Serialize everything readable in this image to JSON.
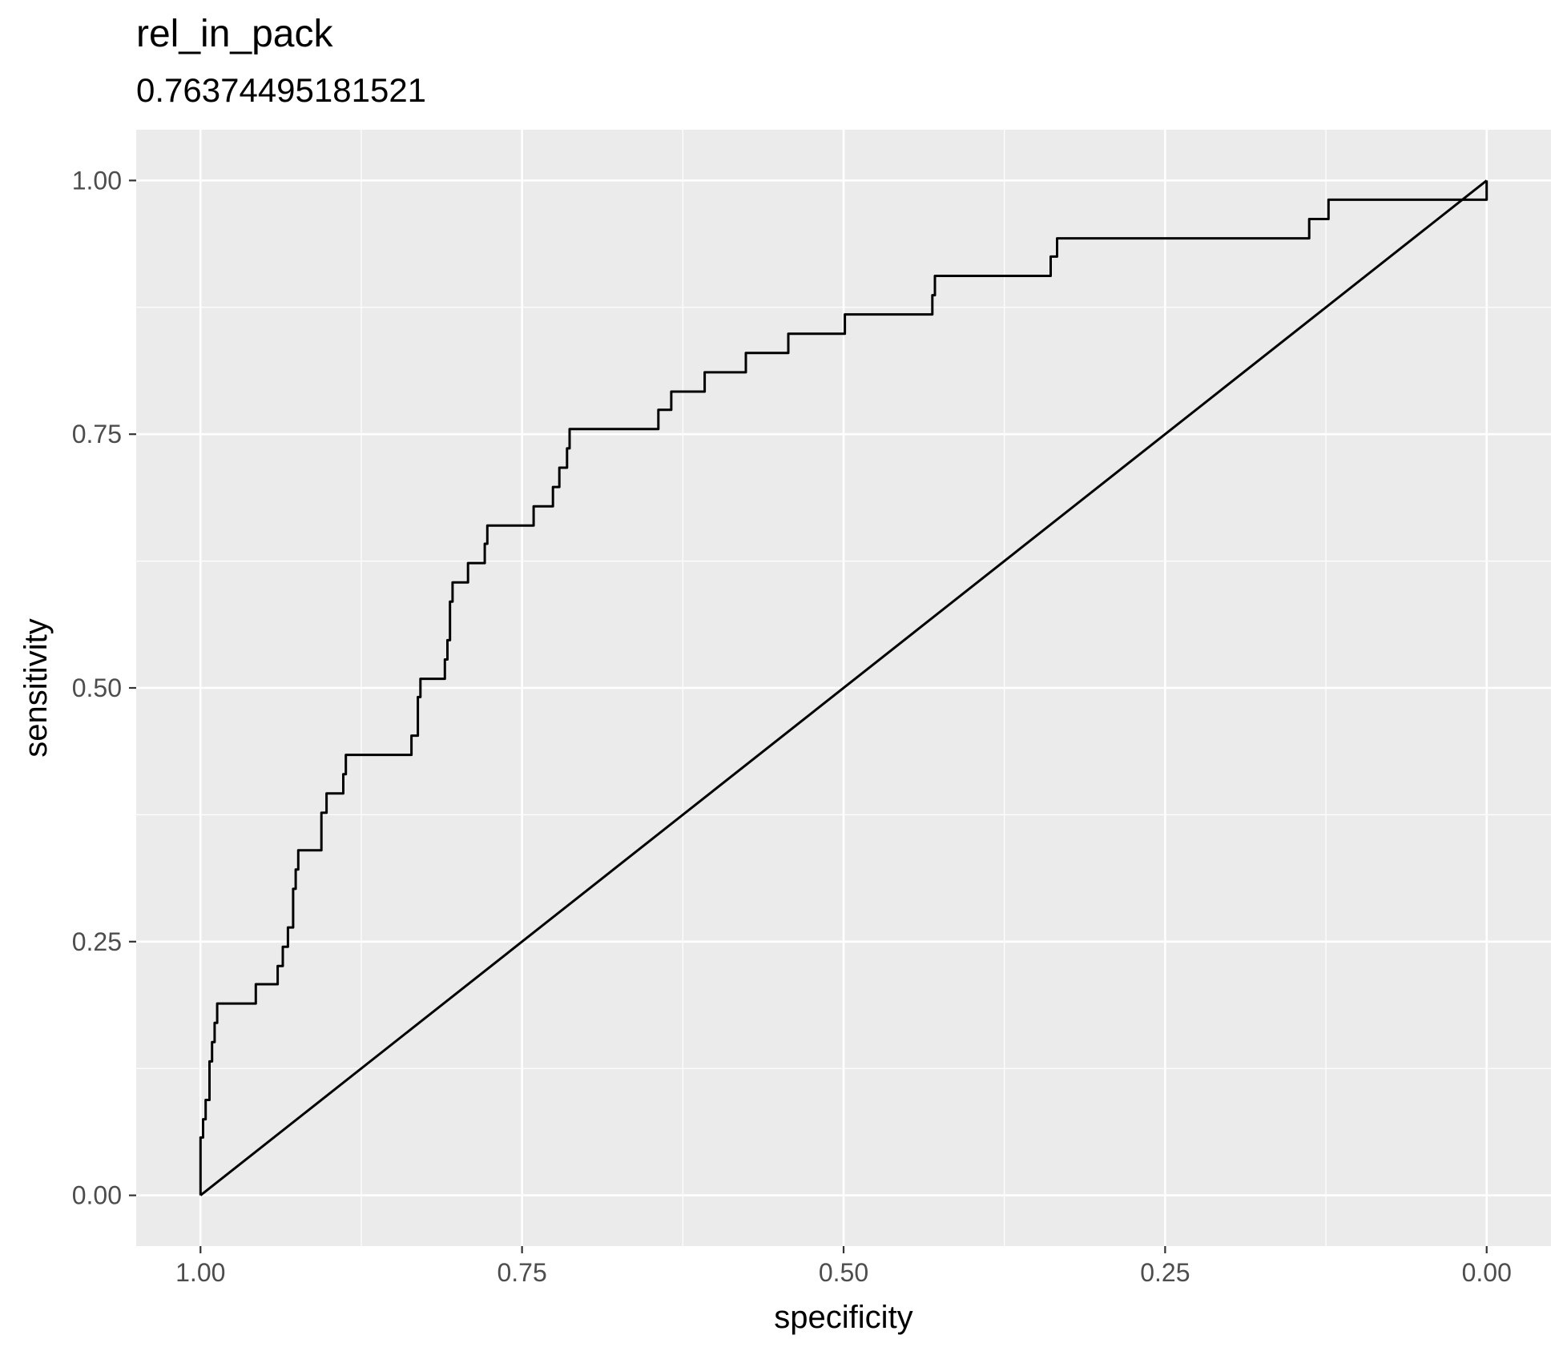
{
  "chart_data": {
    "type": "line",
    "title": "rel_in_pack",
    "subtitle": "0.76374495181521",
    "xlabel": "specificity",
    "ylabel": "sensitivity",
    "xlim": [
      1.05,
      -0.05
    ],
    "ylim": [
      -0.05,
      1.05
    ],
    "x_reversed": true,
    "xticks": [
      1.0,
      0.75,
      0.5,
      0.25,
      0.0
    ],
    "xtick_labels": [
      "1.00",
      "0.75",
      "0.50",
      "0.25",
      "0.00"
    ],
    "yticks": [
      0.0,
      0.25,
      0.5,
      0.75,
      1.0
    ],
    "ytick_labels": [
      "0.00",
      "0.25",
      "0.50",
      "0.75",
      "1.00"
    ],
    "grid": true,
    "panel_background": "#ebebeb",
    "series": [
      {
        "line_color": "#000000",
        "shape": "step",
        "points": [
          [
            1.0,
            0.0
          ],
          [
            1.0,
            0.057
          ],
          [
            0.998,
            0.057
          ],
          [
            0.998,
            0.075
          ],
          [
            0.996,
            0.075
          ],
          [
            0.996,
            0.094
          ],
          [
            0.993,
            0.094
          ],
          [
            0.993,
            0.132
          ],
          [
            0.991,
            0.132
          ],
          [
            0.991,
            0.151
          ],
          [
            0.989,
            0.151
          ],
          [
            0.989,
            0.17
          ],
          [
            0.987,
            0.17
          ],
          [
            0.987,
            0.189
          ],
          [
            0.957,
            0.189
          ],
          [
            0.957,
            0.208
          ],
          [
            0.94,
            0.208
          ],
          [
            0.94,
            0.226
          ],
          [
            0.936,
            0.226
          ],
          [
            0.936,
            0.245
          ],
          [
            0.932,
            0.245
          ],
          [
            0.932,
            0.264
          ],
          [
            0.928,
            0.264
          ],
          [
            0.928,
            0.302
          ],
          [
            0.926,
            0.302
          ],
          [
            0.926,
            0.321
          ],
          [
            0.924,
            0.321
          ],
          [
            0.924,
            0.34
          ],
          [
            0.906,
            0.34
          ],
          [
            0.906,
            0.377
          ],
          [
            0.902,
            0.377
          ],
          [
            0.902,
            0.396
          ],
          [
            0.889,
            0.396
          ],
          [
            0.889,
            0.415
          ],
          [
            0.887,
            0.415
          ],
          [
            0.887,
            0.434
          ],
          [
            0.836,
            0.434
          ],
          [
            0.836,
            0.453
          ],
          [
            0.831,
            0.453
          ],
          [
            0.831,
            0.491
          ],
          [
            0.829,
            0.491
          ],
          [
            0.829,
            0.509
          ],
          [
            0.81,
            0.509
          ],
          [
            0.81,
            0.528
          ],
          [
            0.808,
            0.528
          ],
          [
            0.808,
            0.547
          ],
          [
            0.806,
            0.547
          ],
          [
            0.806,
            0.585
          ],
          [
            0.804,
            0.585
          ],
          [
            0.804,
            0.604
          ],
          [
            0.792,
            0.604
          ],
          [
            0.792,
            0.623
          ],
          [
            0.779,
            0.623
          ],
          [
            0.779,
            0.642
          ],
          [
            0.777,
            0.642
          ],
          [
            0.777,
            0.66
          ],
          [
            0.741,
            0.66
          ],
          [
            0.741,
            0.679
          ],
          [
            0.726,
            0.679
          ],
          [
            0.726,
            0.698
          ],
          [
            0.721,
            0.698
          ],
          [
            0.721,
            0.717
          ],
          [
            0.715,
            0.717
          ],
          [
            0.715,
            0.736
          ],
          [
            0.713,
            0.736
          ],
          [
            0.713,
            0.755
          ],
          [
            0.644,
            0.755
          ],
          [
            0.644,
            0.774
          ],
          [
            0.634,
            0.774
          ],
          [
            0.634,
            0.792
          ],
          [
            0.608,
            0.792
          ],
          [
            0.608,
            0.811
          ],
          [
            0.576,
            0.811
          ],
          [
            0.576,
            0.83
          ],
          [
            0.543,
            0.83
          ],
          [
            0.543,
            0.849
          ],
          [
            0.499,
            0.849
          ],
          [
            0.499,
            0.868
          ],
          [
            0.431,
            0.868
          ],
          [
            0.431,
            0.887
          ],
          [
            0.429,
            0.887
          ],
          [
            0.429,
            0.906
          ],
          [
            0.339,
            0.906
          ],
          [
            0.339,
            0.925
          ],
          [
            0.334,
            0.925
          ],
          [
            0.334,
            0.943
          ],
          [
            0.138,
            0.943
          ],
          [
            0.138,
            0.962
          ],
          [
            0.123,
            0.962
          ],
          [
            0.123,
            0.981
          ],
          [
            0.0,
            0.981
          ],
          [
            0.0,
            1.0
          ]
        ]
      },
      {
        "line_color": "#000000",
        "shape": "diagonal",
        "points": [
          [
            1.0,
            0.0
          ],
          [
            0.0,
            1.0
          ]
        ]
      }
    ]
  }
}
